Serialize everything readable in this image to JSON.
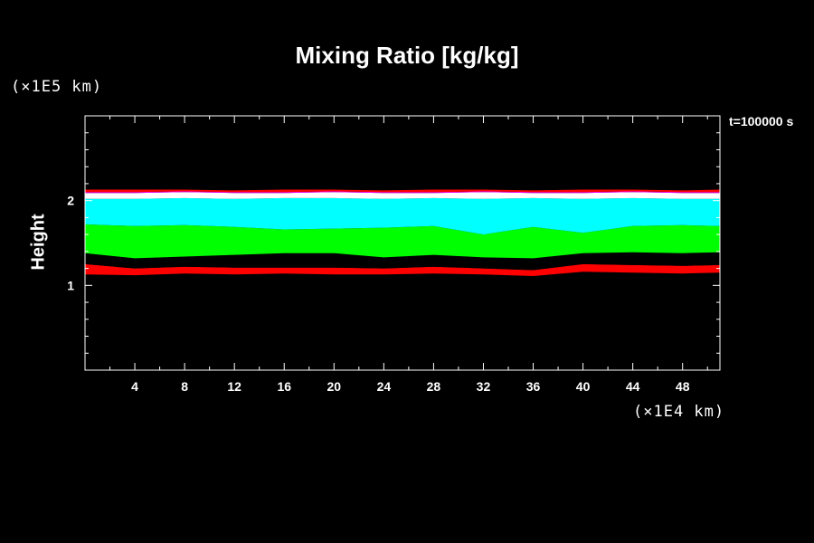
{
  "chart_data": {
    "type": "area",
    "title": "Mixing Ratio [kg/kg]",
    "xlabel": "",
    "ylabel": "Height",
    "x_unit": "(×1E4 km)",
    "y_unit": "(×1E5 km)",
    "time_label": "t=100000 s",
    "xlim": [
      0,
      51
    ],
    "ylim": [
      0,
      3
    ],
    "x_ticks": [
      "4",
      "8",
      "12",
      "16",
      "20",
      "24",
      "28",
      "32",
      "36",
      "40",
      "44",
      "48"
    ],
    "y_ticks": [
      "1",
      "2"
    ],
    "colors": {
      "red": "#ff0000",
      "black": "#000000",
      "green": "#00ff00",
      "cyan": "#00ffff",
      "white": "#ffffff",
      "magenta": "#ff00ff"
    },
    "x": [
      0,
      4,
      8,
      12,
      16,
      20,
      24,
      28,
      32,
      36,
      40,
      44,
      48,
      51
    ],
    "series": [
      {
        "color_key": "red",
        "lower": [
          1.13,
          1.12,
          1.14,
          1.13,
          1.14,
          1.13,
          1.13,
          1.14,
          1.13,
          1.11,
          1.16,
          1.15,
          1.14,
          1.15
        ],
        "upper": [
          1.25,
          1.2,
          1.22,
          1.21,
          1.21,
          1.21,
          1.2,
          1.22,
          1.2,
          1.18,
          1.25,
          1.24,
          1.23,
          1.24
        ]
      },
      {
        "color_key": "black",
        "lower": [
          1.25,
          1.2,
          1.22,
          1.21,
          1.21,
          1.21,
          1.2,
          1.22,
          1.2,
          1.18,
          1.25,
          1.24,
          1.23,
          1.24
        ],
        "upper": [
          1.38,
          1.4,
          1.4,
          1.4,
          1.4,
          1.4,
          1.37,
          1.4,
          1.37,
          1.36,
          1.4,
          1.4,
          1.4,
          1.4
        ]
      },
      {
        "color_key": "green",
        "lower": [
          1.38,
          1.32,
          1.34,
          1.36,
          1.38,
          1.38,
          1.33,
          1.36,
          1.33,
          1.32,
          1.38,
          1.39,
          1.38,
          1.39
        ],
        "upper": [
          1.72,
          1.7,
          1.71,
          1.69,
          1.66,
          1.67,
          1.68,
          1.7,
          1.6,
          1.69,
          1.62,
          1.7,
          1.71,
          1.7
        ]
      },
      {
        "color_key": "cyan",
        "lower": [
          1.72,
          1.7,
          1.71,
          1.69,
          1.66,
          1.67,
          1.68,
          1.7,
          1.6,
          1.69,
          1.62,
          1.7,
          1.71,
          1.7
        ],
        "upper": [
          2.02,
          2.02,
          2.03,
          2.02,
          2.03,
          2.03,
          2.02,
          2.03,
          2.02,
          2.03,
          2.02,
          2.03,
          2.02,
          2.02
        ]
      },
      {
        "color_key": "white",
        "lower": [
          2.02,
          2.02,
          2.03,
          2.02,
          2.03,
          2.03,
          2.02,
          2.03,
          2.02,
          2.03,
          2.02,
          2.03,
          2.02,
          2.02
        ],
        "upper": [
          2.09,
          2.09,
          2.1,
          2.09,
          2.09,
          2.1,
          2.09,
          2.09,
          2.1,
          2.09,
          2.09,
          2.1,
          2.09,
          2.09
        ]
      },
      {
        "color_key": "magenta",
        "lower": [
          2.09,
          2.09,
          2.1,
          2.09,
          2.09,
          2.1,
          2.09,
          2.09,
          2.1,
          2.09,
          2.09,
          2.1,
          2.09,
          2.09
        ],
        "upper": [
          2.1,
          2.1,
          2.11,
          2.1,
          2.1,
          2.11,
          2.1,
          2.1,
          2.11,
          2.1,
          2.1,
          2.11,
          2.1,
          2.1
        ]
      },
      {
        "color_key": "red",
        "lower": [
          2.1,
          2.1,
          2.11,
          2.1,
          2.1,
          2.11,
          2.1,
          2.1,
          2.11,
          2.1,
          2.1,
          2.11,
          2.1,
          2.1
        ],
        "upper": [
          2.13,
          2.13,
          2.13,
          2.12,
          2.13,
          2.13,
          2.12,
          2.13,
          2.13,
          2.12,
          2.13,
          2.13,
          2.12,
          2.13
        ]
      }
    ],
    "grid": false,
    "legend": "none"
  }
}
